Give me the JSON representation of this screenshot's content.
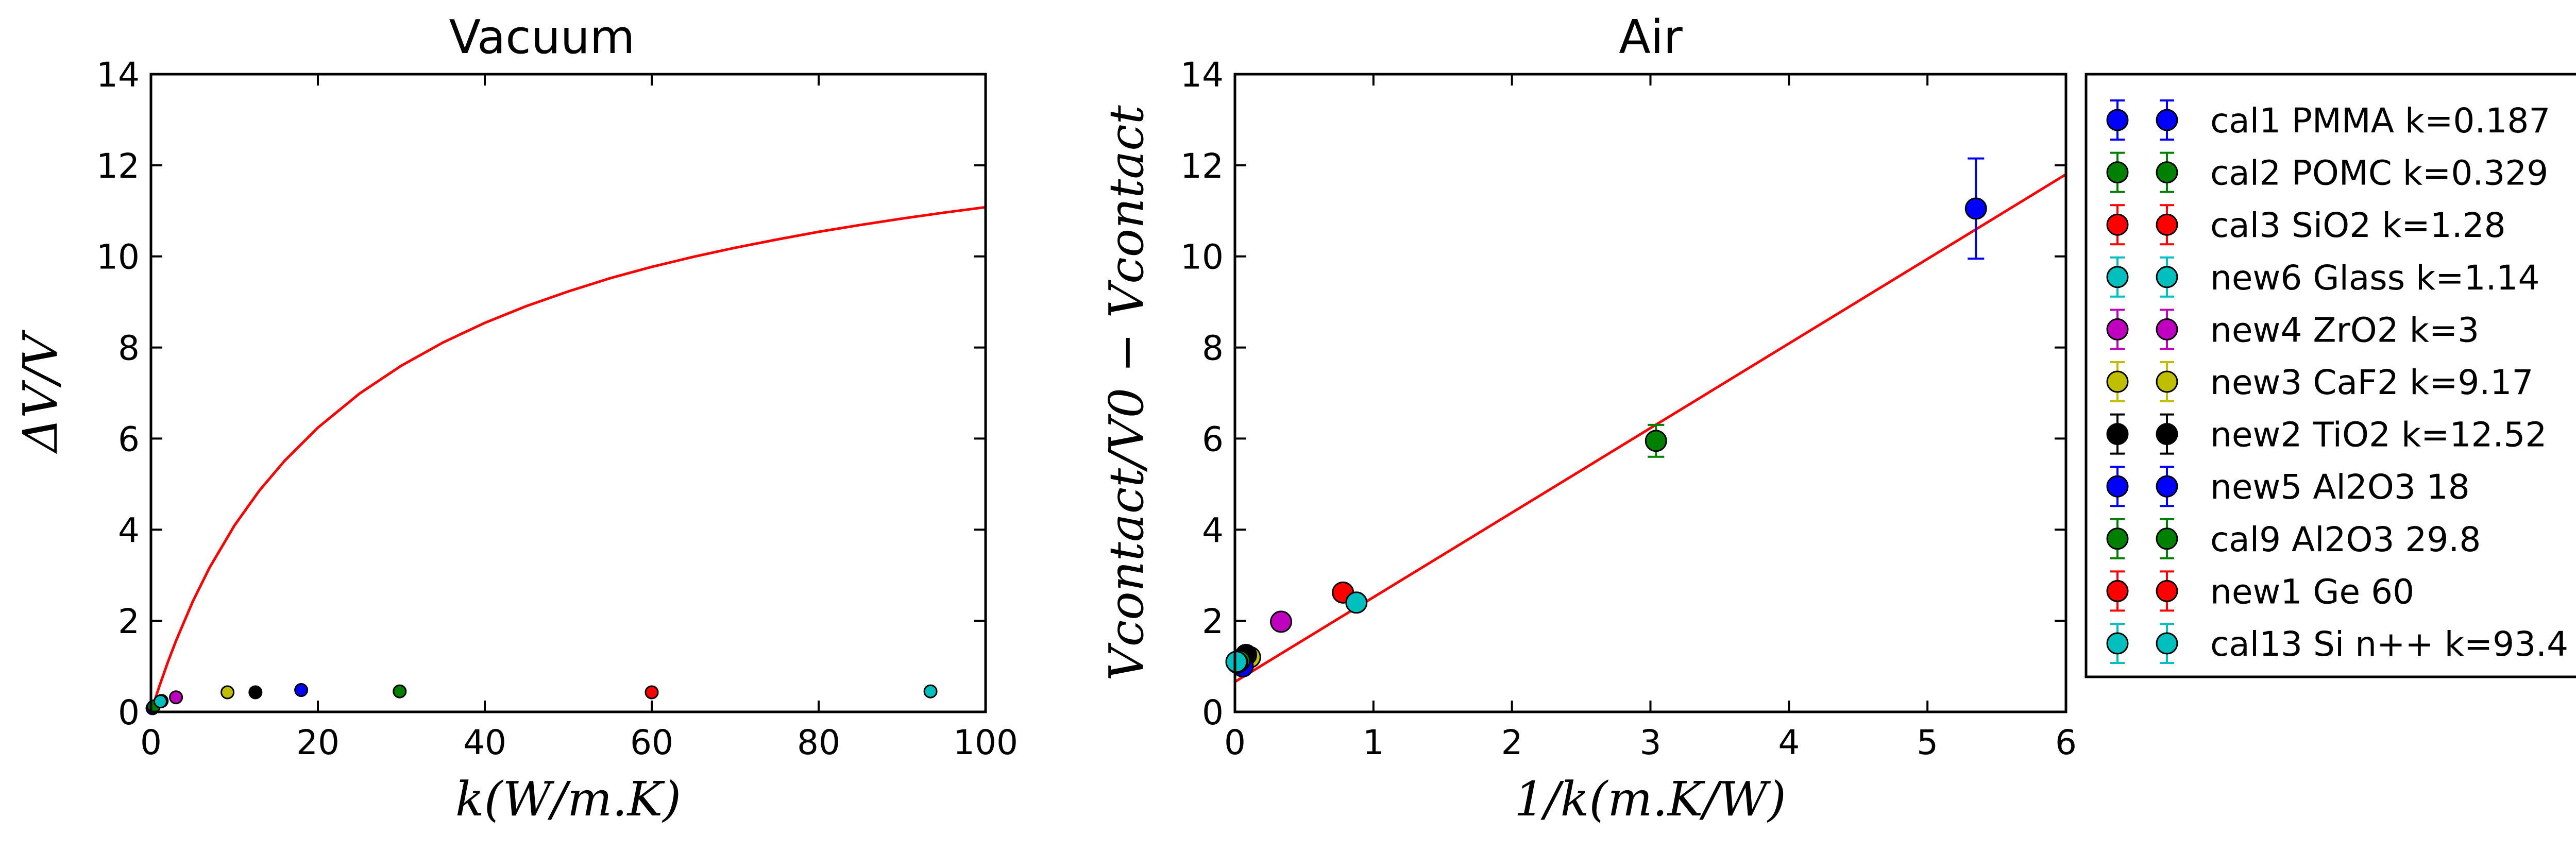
{
  "chart_data": [
    {
      "type": "scatter",
      "title": "Vacuum",
      "xlabel": "k(W/m.K)",
      "ylabel": "ΔV/V",
      "xlim": [
        0,
        100
      ],
      "ylim": [
        0,
        14
      ],
      "xticks": [
        "0",
        "20",
        "40",
        "60",
        "80",
        "100"
      ],
      "yticks": [
        "0",
        "2",
        "4",
        "6",
        "8",
        "10",
        "12",
        "14"
      ],
      "grid": false,
      "legend": "none",
      "series": [
        {
          "color": "#0000ff",
          "points": [
            {
              "x": 0.187,
              "y": 0.08
            }
          ]
        },
        {
          "color": "#008000",
          "points": [
            {
              "x": 0.329,
              "y": 0.12
            }
          ]
        },
        {
          "color": "#ff0000",
          "points": [
            {
              "x": 1.28,
              "y": 0.24
            }
          ]
        },
        {
          "color": "#00bfbf",
          "points": [
            {
              "x": 1.14,
              "y": 0.23
            }
          ]
        },
        {
          "color": "#bf00bf",
          "points": [
            {
              "x": 3,
              "y": 0.32
            }
          ]
        },
        {
          "color": "#bfbf00",
          "points": [
            {
              "x": 9.17,
              "y": 0.43
            }
          ]
        },
        {
          "color": "#000000",
          "points": [
            {
              "x": 12.52,
              "y": 0.43
            }
          ]
        },
        {
          "color": "#0000ff",
          "points": [
            {
              "x": 18,
              "y": 0.48
            }
          ]
        },
        {
          "color": "#008000",
          "points": [
            {
              "x": 29.8,
              "y": 0.45
            }
          ]
        },
        {
          "color": "#ff0000",
          "points": [
            {
              "x": 60,
              "y": 0.43
            }
          ]
        },
        {
          "color": "#00bfbf",
          "points": [
            {
              "x": 93.4,
              "y": 0.45
            }
          ]
        }
      ],
      "fit_line": {
        "color": "#ff0000",
        "x": [
          0,
          1,
          2,
          3,
          5,
          7,
          10,
          13,
          16,
          20,
          25,
          30,
          35,
          40,
          45,
          50,
          55,
          60,
          65,
          70,
          75,
          80,
          85,
          90,
          95,
          100
        ],
        "y": [
          0,
          0.56,
          1.08,
          1.56,
          2.42,
          3.16,
          4.09,
          4.86,
          5.51,
          6.24,
          6.99,
          7.6,
          8.11,
          8.54,
          8.91,
          9.23,
          9.52,
          9.77,
          9.99,
          10.19,
          10.37,
          10.54,
          10.69,
          10.83,
          10.96,
          11.08
        ]
      }
    },
    {
      "type": "scatter",
      "title": "Air",
      "xlabel": "1/k(m.K/W)",
      "ylabel": "Vcontact/V0 − Vcontact",
      "xlim": [
        0,
        6
      ],
      "ylim": [
        0,
        14
      ],
      "xticks": [
        "0",
        "1",
        "2",
        "3",
        "4",
        "5",
        "6"
      ],
      "yticks": [
        "0",
        "2",
        "4",
        "6",
        "8",
        "10",
        "12",
        "14"
      ],
      "grid": false,
      "legend": "outside-right",
      "series": [
        {
          "name": "cal1 PMMA k=0.187",
          "color": "#0000ff",
          "points": [
            {
              "x": 5.35,
              "y": 11.05,
              "err": 1.1
            }
          ]
        },
        {
          "name": "cal2 POMC k=0.329",
          "color": "#008000",
          "points": [
            {
              "x": 3.04,
              "y": 5.95,
              "err": 0.35
            }
          ]
        },
        {
          "name": "cal3 SiO2 k=1.28",
          "color": "#ff0000",
          "points": [
            {
              "x": 0.78,
              "y": 2.62,
              "err": 0.1
            }
          ]
        },
        {
          "name": "new6 Glass k=1.14",
          "color": "#00bfbf",
          "points": [
            {
              "x": 0.877,
              "y": 2.4,
              "err": 0.1
            }
          ]
        },
        {
          "name": "new4 ZrO2 k=3",
          "color": "#bf00bf",
          "points": [
            {
              "x": 0.333,
              "y": 1.98,
              "err": 0.1
            }
          ]
        },
        {
          "name": "new3 CaF2 k=9.17",
          "color": "#bfbf00",
          "points": [
            {
              "x": 0.109,
              "y": 1.2,
              "err": 0.1
            }
          ]
        },
        {
          "name": "new2 TiO2 k=12.52",
          "color": "#000000",
          "points": [
            {
              "x": 0.08,
              "y": 1.25,
              "err": 0.1
            }
          ]
        },
        {
          "name": "new5 Al2O3 18",
          "color": "#0000ff",
          "points": [
            {
              "x": 0.056,
              "y": 1.0,
              "err": 0.1
            }
          ]
        },
        {
          "name": "cal9 Al2O3 29.8",
          "color": "#008000",
          "points": [
            {
              "x": 0.034,
              "y": 1.12,
              "err": 0.1
            }
          ]
        },
        {
          "name": "new1 Ge 60",
          "color": "#ff0000",
          "points": [
            {
              "x": 0.017,
              "y": 1.08,
              "err": 0.1
            }
          ]
        },
        {
          "name": "cal13 Si n++ k=93.4",
          "color": "#00bfbf",
          "points": [
            {
              "x": 0.011,
              "y": 1.1,
              "err": 0.1
            }
          ]
        }
      ],
      "fit_line": {
        "color": "#ff0000",
        "x": [
          0,
          6
        ],
        "y": [
          0.66,
          11.8
        ]
      }
    }
  ]
}
